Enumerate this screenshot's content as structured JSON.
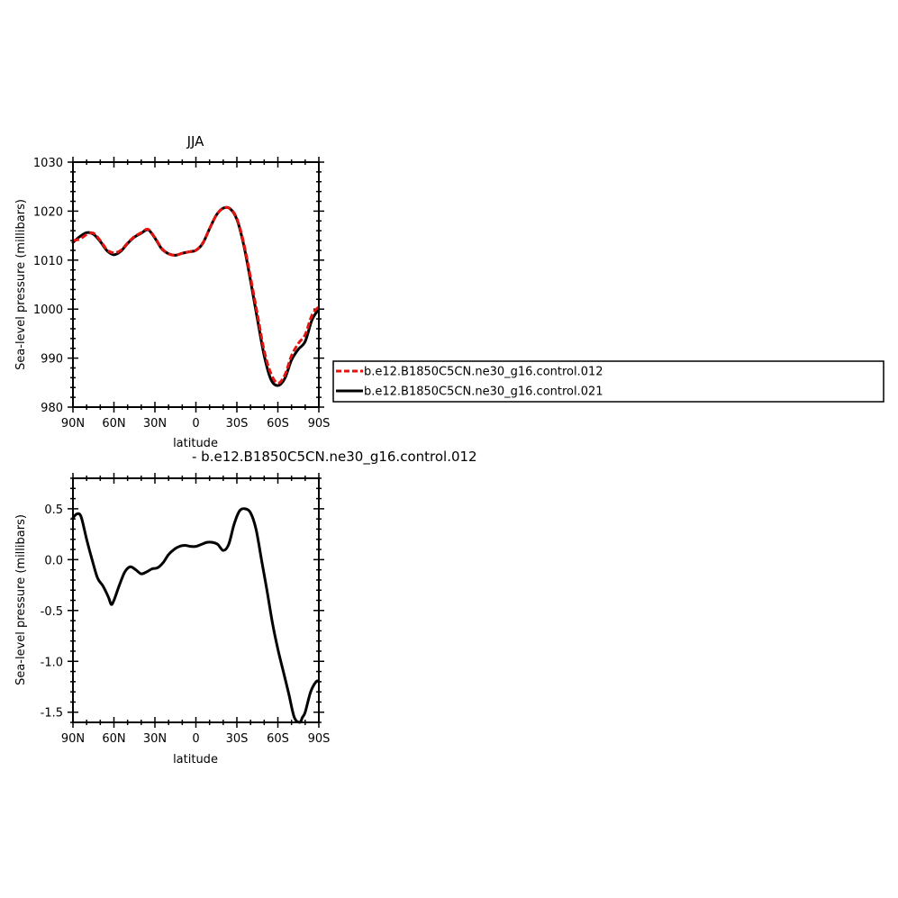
{
  "chart_data": [
    {
      "type": "line",
      "title": "JJA",
      "xlabel": "latitude",
      "ylabel": "Sea-level pressure (millibars)",
      "xlim": [
        90,
        -90
      ],
      "ylim": [
        980,
        1030
      ],
      "x_ticks": [
        90,
        60,
        30,
        0,
        -30,
        -60,
        -90
      ],
      "x_tick_labels": [
        "90N",
        "60N",
        "30N",
        "0",
        "30S",
        "60S",
        "90S"
      ],
      "y_ticks": [
        980,
        990,
        1000,
        1010,
        1020,
        1030
      ],
      "y_tick_labels": [
        "980",
        "990",
        "1000",
        "1010",
        "1020",
        "1030"
      ],
      "legend_position": "right",
      "series": [
        {
          "name": "b.e12.B1850C5CN.ne30_g16.control.012",
          "color": "#e3140f",
          "dash": "dashed",
          "x": [
            90,
            85,
            80,
            75,
            70,
            65,
            60,
            55,
            50,
            45,
            40,
            35,
            30,
            25,
            20,
            15,
            10,
            5,
            0,
            -5,
            -10,
            -15,
            -20,
            -25,
            -30,
            -35,
            -40,
            -45,
            -50,
            -55,
            -60,
            -65,
            -70,
            -75,
            -80,
            -85,
            -90
          ],
          "y": [
            1014.0,
            1014.3,
            1015.2,
            1015.5,
            1014.0,
            1012.1,
            1011.5,
            1012.0,
            1013.5,
            1014.8,
            1015.6,
            1016.3,
            1014.6,
            1012.4,
            1011.3,
            1011.0,
            1011.4,
            1011.7,
            1012.0,
            1013.5,
            1016.4,
            1019.2,
            1020.6,
            1020.5,
            1018.5,
            1013.5,
            1006.5,
            999.0,
            991.5,
            986.8,
            984.9,
            986.5,
            990.5,
            993.0,
            994.8,
            998.8,
            1000.5
          ]
        },
        {
          "name": "b.e12.B1850C5CN.ne30_g16.control.021",
          "color": "#000000",
          "dash": "solid",
          "x": [
            90,
            85,
            80,
            75,
            70,
            65,
            60,
            55,
            50,
            45,
            40,
            35,
            30,
            25,
            20,
            15,
            10,
            5,
            0,
            -5,
            -10,
            -15,
            -20,
            -25,
            -30,
            -35,
            -40,
            -45,
            -50,
            -55,
            -60,
            -65,
            -70,
            -75,
            -80,
            -85,
            -90
          ],
          "y": [
            1013.6,
            1014.8,
            1015.6,
            1015.3,
            1013.8,
            1011.9,
            1011.1,
            1011.8,
            1013.4,
            1014.7,
            1015.5,
            1016.2,
            1014.5,
            1012.3,
            1011.3,
            1011.0,
            1011.4,
            1011.7,
            1012.0,
            1013.4,
            1016.4,
            1019.2,
            1020.6,
            1020.5,
            1018.3,
            1013.1,
            1005.8,
            998.0,
            990.5,
            985.6,
            984.4,
            985.8,
            989.6,
            991.8,
            993.4,
            997.8,
            1000.0
          ]
        }
      ]
    },
    {
      "type": "line",
      "title": "- b.e12.B1850C5CN.ne30_g16.control.012",
      "xlabel": "latitude",
      "ylabel": "Sea-level pressure (millibars)",
      "xlim": [
        90,
        -90
      ],
      "ylim": [
        -1.6,
        0.8
      ],
      "x_ticks": [
        90,
        60,
        30,
        0,
        -30,
        -60,
        -90
      ],
      "x_tick_labels": [
        "90N",
        "60N",
        "30N",
        "0",
        "30S",
        "60S",
        "90S"
      ],
      "y_ticks": [
        -1.5,
        -1.0,
        -0.5,
        0.0,
        0.5
      ],
      "y_tick_labels": [
        "-1.5",
        "-1.0",
        "-0.5",
        "0.0",
        "0.5"
      ],
      "series": [
        {
          "color": "#000000",
          "dash": "solid",
          "x": [
            90,
            87,
            84,
            80,
            76,
            72,
            68,
            64,
            62,
            60,
            56,
            52,
            48,
            44,
            40,
            36,
            32,
            28,
            24,
            20,
            16,
            12,
            8,
            4,
            0,
            -4,
            -8,
            -12,
            -16,
            -20,
            -24,
            -28,
            -32,
            -36,
            -40,
            -44,
            -48,
            -52,
            -56,
            -60,
            -64,
            -68,
            -72,
            -76,
            -78,
            -80,
            -84,
            -88,
            -90
          ],
          "y": [
            0.41,
            0.45,
            0.42,
            0.2,
            0.0,
            -0.18,
            -0.26,
            -0.37,
            -0.44,
            -0.4,
            -0.25,
            -0.12,
            -0.07,
            -0.1,
            -0.14,
            -0.12,
            -0.09,
            -0.08,
            -0.03,
            0.05,
            0.1,
            0.13,
            0.14,
            0.13,
            0.13,
            0.15,
            0.17,
            0.17,
            0.15,
            0.09,
            0.15,
            0.35,
            0.48,
            0.5,
            0.46,
            0.3,
            0.0,
            -0.3,
            -0.62,
            -0.88,
            -1.1,
            -1.32,
            -1.55,
            -1.6,
            -1.55,
            -1.5,
            -1.3,
            -1.2,
            -1.2
          ]
        }
      ]
    }
  ]
}
